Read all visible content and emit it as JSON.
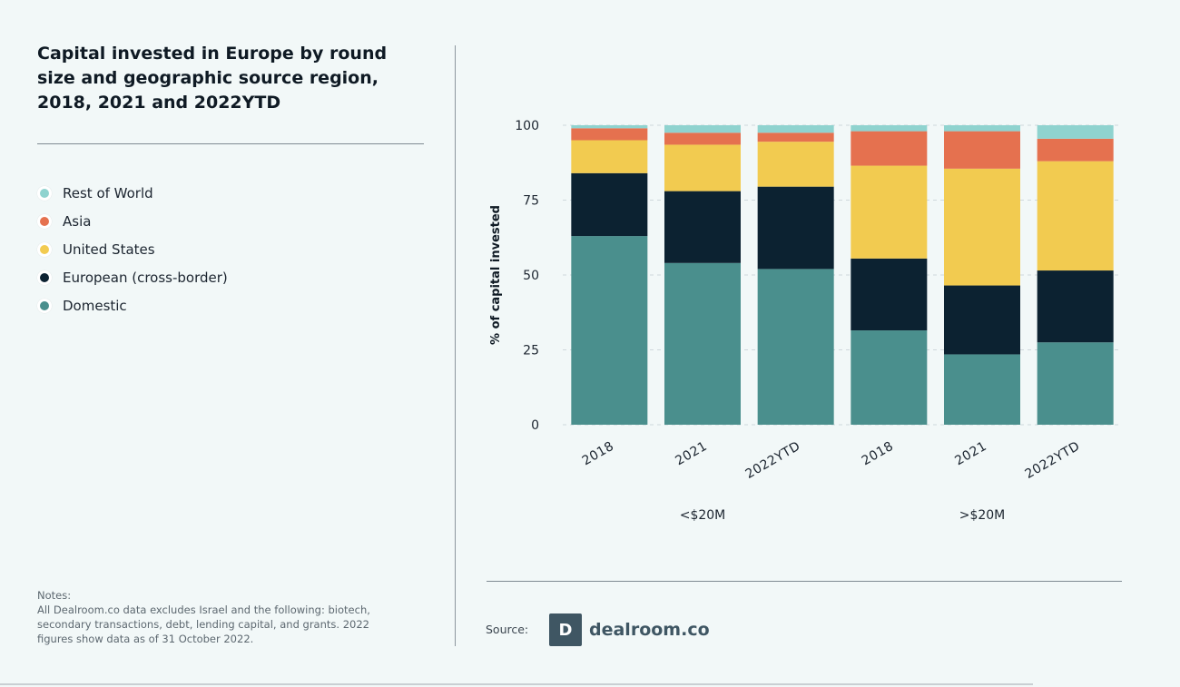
{
  "title": "Capital invested in Europe by round size and geographic source region, 2018, 2021 and 2022YTD",
  "legend": [
    {
      "label": "Rest of World",
      "color": "#8fd3cf"
    },
    {
      "label": "Asia",
      "color": "#e5714f"
    },
    {
      "label": "United States",
      "color": "#f2cb50"
    },
    {
      "label": "European (cross-border)",
      "color": "#0c2231"
    },
    {
      "label": "Domestic",
      "color": "#4a8f8d"
    }
  ],
  "notes": {
    "heading": "Notes:",
    "text": "All Dealroom.co data excludes Israel and the following: biotech, secondary transactions, debt, lending capital, and grants. 2022 figures show data as of 31 October 2022."
  },
  "source": {
    "label": "Source:",
    "logo_mark": "D",
    "logo_text": "dealroom.co"
  },
  "chart_data": {
    "type": "bar",
    "stacked": true,
    "ylabel": "% of capital invested",
    "xlabel": "",
    "ylim": [
      0,
      100
    ],
    "yticks": [
      0,
      25,
      50,
      75,
      100
    ],
    "grid": true,
    "categories": [
      "2018",
      "2021",
      "2022YTD",
      "2018",
      "2021",
      "2022YTD"
    ],
    "groups": [
      {
        "label": "<$20M",
        "categories": [
          "2018",
          "2021",
          "2022YTD"
        ]
      },
      {
        "label": ">$20M",
        "categories": [
          "2018",
          "2021",
          "2022YTD"
        ]
      }
    ],
    "series": [
      {
        "name": "Domestic",
        "color": "#4a8f8d",
        "values": [
          63,
          54,
          52,
          31.5,
          23.5,
          27.5
        ]
      },
      {
        "name": "European (cross-border)",
        "color": "#0c2231",
        "values": [
          21,
          24,
          27.5,
          24,
          23,
          24
        ]
      },
      {
        "name": "United States",
        "color": "#f2cb50",
        "values": [
          11,
          15.5,
          15,
          31,
          39,
          36.5
        ]
      },
      {
        "name": "Asia",
        "color": "#e5714f",
        "values": [
          4,
          4,
          3,
          11.5,
          12.5,
          7.5
        ]
      },
      {
        "name": "Rest of World",
        "color": "#8fd3cf",
        "values": [
          1,
          2.5,
          2.5,
          2,
          2,
          4.5
        ]
      }
    ]
  }
}
